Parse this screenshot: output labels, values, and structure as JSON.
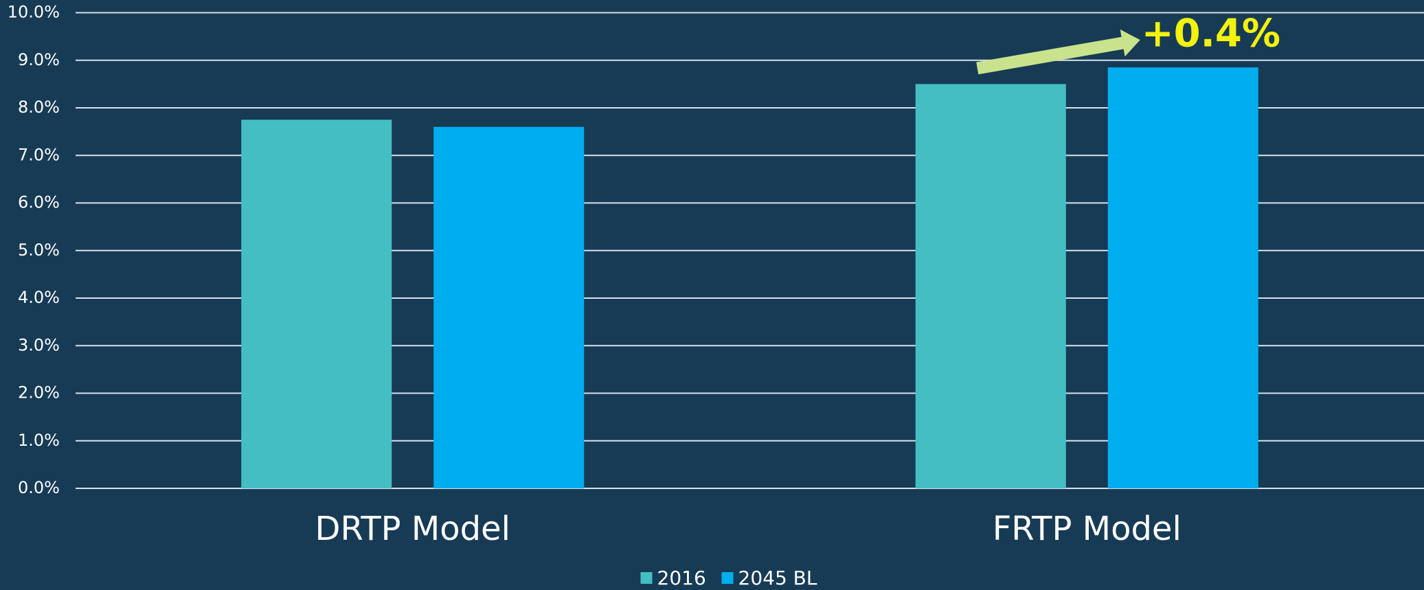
{
  "chart_data": {
    "type": "bar",
    "categories": [
      "DRTP Model",
      "FRTP Model"
    ],
    "series": [
      {
        "name": "2016",
        "color": "#45bec3",
        "values": [
          7.75,
          8.5
        ]
      },
      {
        "name": "2045 BL",
        "color": "#00aeef",
        "values": [
          7.6,
          8.85
        ]
      }
    ],
    "ylim": [
      0,
      10
    ],
    "yticks": [
      {
        "value": 0,
        "label": "0.0%"
      },
      {
        "value": 1,
        "label": "1.0%"
      },
      {
        "value": 2,
        "label": "2.0%"
      },
      {
        "value": 3,
        "label": "3.0%"
      },
      {
        "value": 4,
        "label": "4.0%"
      },
      {
        "value": 5,
        "label": "5.0%"
      },
      {
        "value": 6,
        "label": "6.0%"
      },
      {
        "value": 7,
        "label": "7.0%"
      },
      {
        "value": 8,
        "label": "8.0%"
      },
      {
        "value": 9,
        "label": "9.0%"
      },
      {
        "value": 10,
        "label": "10.0%"
      }
    ],
    "grid": true,
    "legend": "bottom",
    "annotation": "+0.4%"
  }
}
